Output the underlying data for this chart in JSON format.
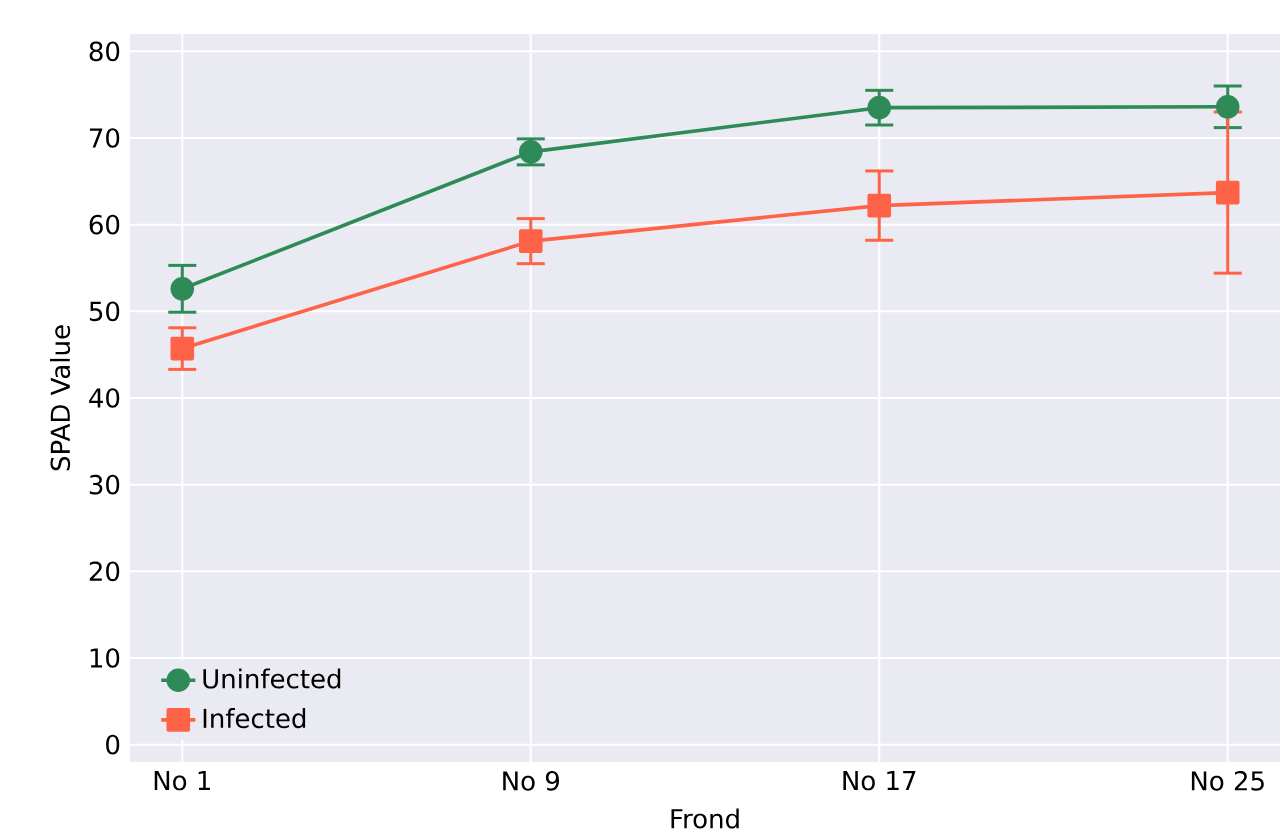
{
  "chart_data": {
    "type": "line",
    "xlabel": "Frond",
    "ylabel": "SPAD Value",
    "categories": [
      "No 1",
      "No 9",
      "No 17",
      "No 25"
    ],
    "series": [
      {
        "name": "Uninfected",
        "color": "#2e8b57",
        "marker": "circle",
        "values": [
          52.6,
          68.4,
          73.5,
          73.6
        ],
        "errors": [
          2.7,
          1.5,
          2.0,
          2.4
        ]
      },
      {
        "name": "Infected",
        "color": "#ff6347",
        "marker": "square",
        "values": [
          45.7,
          58.1,
          62.2,
          63.7
        ],
        "errors": [
          2.4,
          2.6,
          4.0,
          9.3
        ]
      }
    ],
    "ylim": [
      -2,
      82
    ],
    "yticks": [
      0,
      10,
      20,
      30,
      40,
      50,
      60,
      70,
      80
    ],
    "grid": true,
    "legend": "bottom left"
  }
}
